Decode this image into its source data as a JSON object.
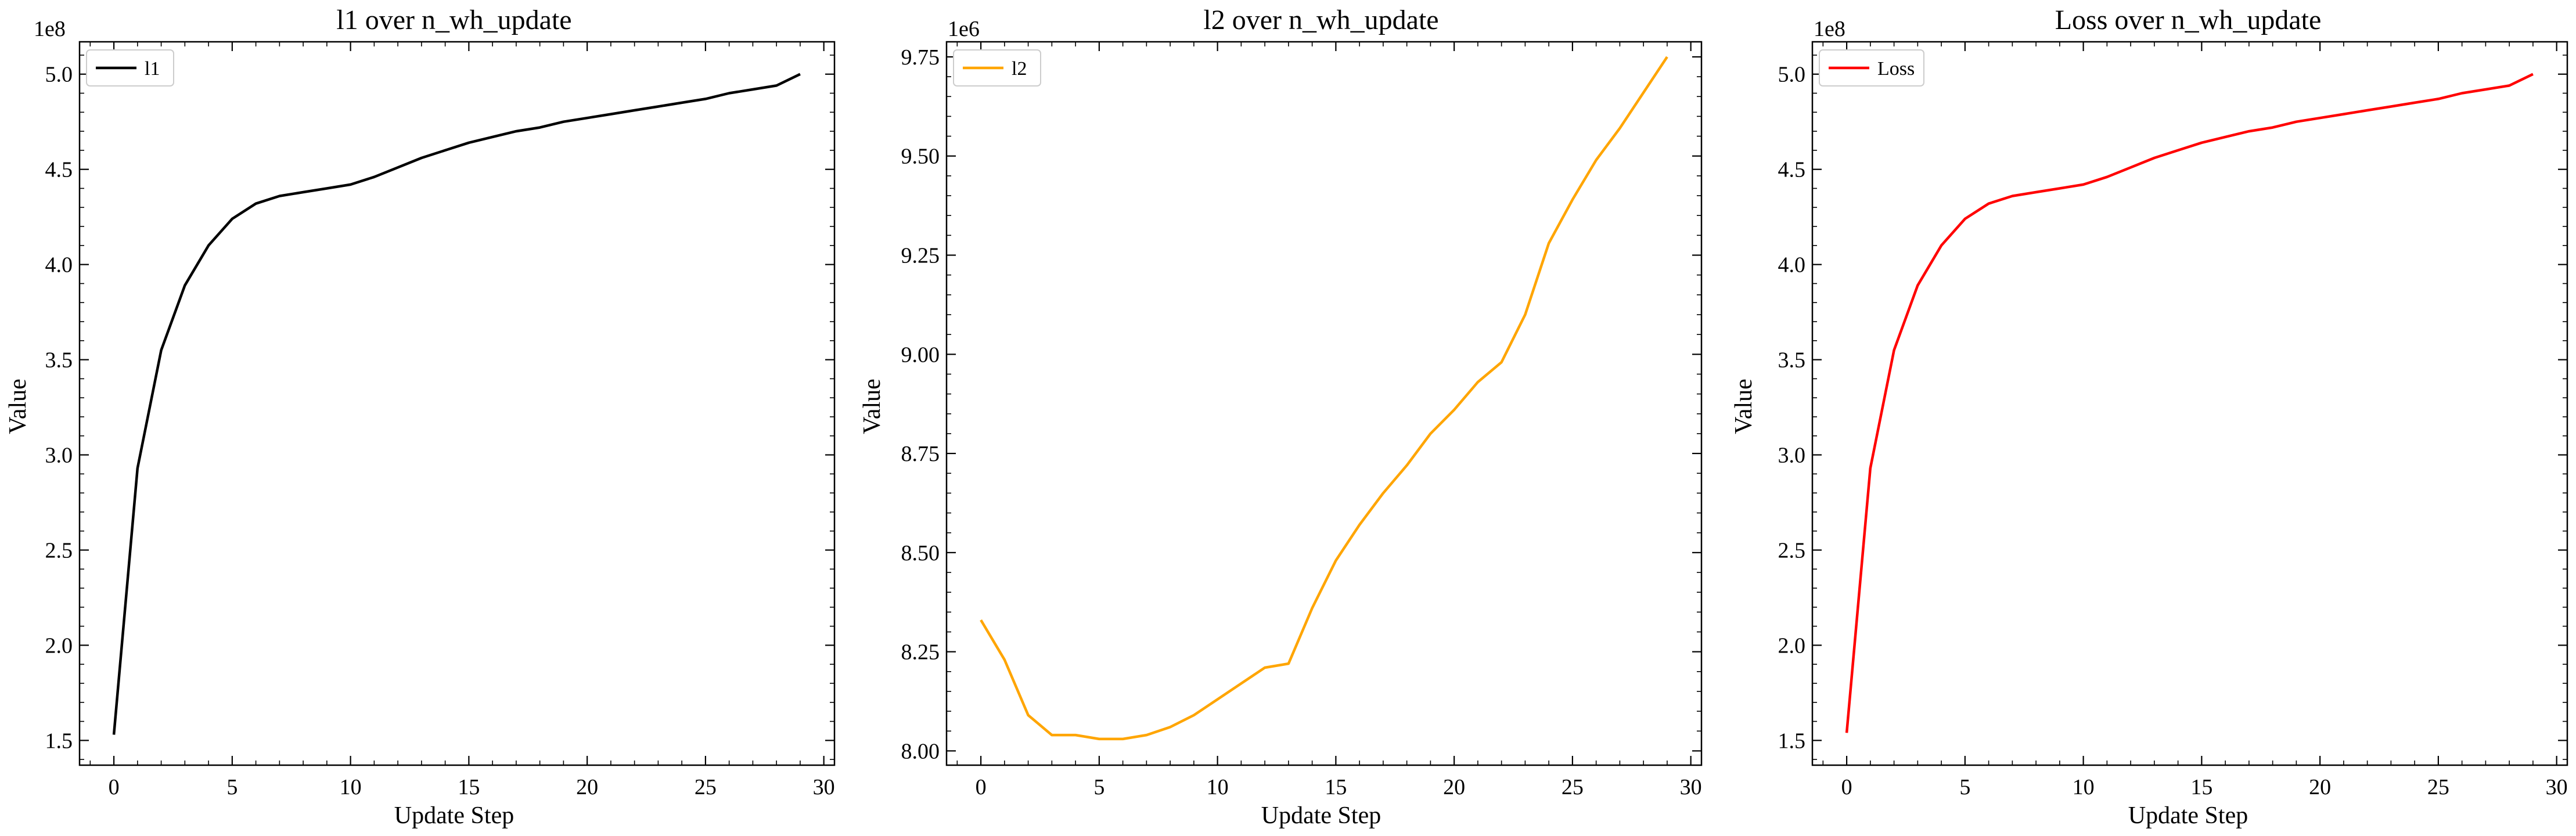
{
  "chart_data": [
    {
      "type": "line",
      "title": "l1 over n_wh_update",
      "xlabel": "Update Step",
      "ylabel": "Value",
      "offset_label": "1e8",
      "xlim": [
        -1.45,
        30.45
      ],
      "ylim": [
        1.37,
        5.17
      ],
      "xticks": [
        0,
        5,
        10,
        15,
        20,
        25,
        30
      ],
      "yticks": [
        1.5,
        2.0,
        2.5,
        3.0,
        3.5,
        4.0,
        4.5,
        5.0
      ],
      "xtick_labels": [
        "0",
        "5",
        "10",
        "15",
        "20",
        "25",
        "30"
      ],
      "ytick_labels": [
        "1.5",
        "2.0",
        "2.5",
        "3.0",
        "3.5",
        "4.0",
        "4.5",
        "5.0"
      ],
      "legend_position": "upper-left",
      "grid": false,
      "series": [
        {
          "name": "l1",
          "color": "#000000",
          "x": [
            0,
            1,
            2,
            3,
            4,
            5,
            6,
            7,
            8,
            9,
            10,
            11,
            12,
            13,
            14,
            15,
            16,
            17,
            18,
            19,
            20,
            21,
            22,
            23,
            24,
            25,
            26,
            27,
            28,
            29
          ],
          "values": [
            1.53,
            2.93,
            3.55,
            3.89,
            4.1,
            4.24,
            4.32,
            4.36,
            4.38,
            4.4,
            4.42,
            4.46,
            4.51,
            4.56,
            4.6,
            4.64,
            4.67,
            4.7,
            4.72,
            4.75,
            4.77,
            4.79,
            4.81,
            4.83,
            4.85,
            4.87,
            4.9,
            4.92,
            4.94,
            5.0
          ]
        }
      ]
    },
    {
      "type": "line",
      "title": "l2 over n_wh_update",
      "xlabel": "Update Step",
      "ylabel": "Value",
      "offset_label": "1e6",
      "xlim": [
        -1.45,
        30.45
      ],
      "ylim": [
        7.964,
        9.788
      ],
      "xticks": [
        0,
        5,
        10,
        15,
        20,
        25,
        30
      ],
      "yticks": [
        8.0,
        8.25,
        8.5,
        8.75,
        9.0,
        9.25,
        9.5,
        9.75
      ],
      "xtick_labels": [
        "0",
        "5",
        "10",
        "15",
        "20",
        "25",
        "30"
      ],
      "ytick_labels": [
        "8.00",
        "8.25",
        "8.50",
        "8.75",
        "9.00",
        "9.25",
        "9.50",
        "9.75"
      ],
      "legend_position": "upper-left",
      "grid": false,
      "series": [
        {
          "name": "l2",
          "color": "#FFA500",
          "x": [
            0,
            1,
            2,
            3,
            4,
            5,
            6,
            7,
            8,
            9,
            10,
            11,
            12,
            13,
            14,
            15,
            16,
            17,
            18,
            19,
            20,
            21,
            22,
            23,
            24,
            25,
            26,
            27,
            28,
            29
          ],
          "values": [
            8.33,
            8.23,
            8.09,
            8.04,
            8.04,
            8.03,
            8.03,
            8.04,
            8.06,
            8.09,
            8.13,
            8.17,
            8.21,
            8.22,
            8.36,
            8.48,
            8.57,
            8.65,
            8.72,
            8.8,
            8.86,
            8.93,
            8.98,
            9.1,
            9.28,
            9.39,
            9.49,
            9.57,
            9.66,
            9.75
          ]
        }
      ]
    },
    {
      "type": "line",
      "title": "Loss over n_wh_update",
      "xlabel": "Update Step",
      "ylabel": "Value",
      "offset_label": "1e8",
      "xlim": [
        -1.45,
        30.45
      ],
      "ylim": [
        1.37,
        5.17
      ],
      "xticks": [
        0,
        5,
        10,
        15,
        20,
        25,
        30
      ],
      "yticks": [
        1.5,
        2.0,
        2.5,
        3.0,
        3.5,
        4.0,
        4.5,
        5.0
      ],
      "xtick_labels": [
        "0",
        "5",
        "10",
        "15",
        "20",
        "25",
        "30"
      ],
      "ytick_labels": [
        "1.5",
        "2.0",
        "2.5",
        "3.0",
        "3.5",
        "4.0",
        "4.5",
        "5.0"
      ],
      "legend_position": "upper-left",
      "grid": false,
      "series": [
        {
          "name": "Loss",
          "color": "#FF0000",
          "x": [
            0,
            1,
            2,
            3,
            4,
            5,
            6,
            7,
            8,
            9,
            10,
            11,
            12,
            13,
            14,
            15,
            16,
            17,
            18,
            19,
            20,
            21,
            22,
            23,
            24,
            25,
            26,
            27,
            28,
            29
          ],
          "values": [
            1.54,
            2.93,
            3.55,
            3.89,
            4.1,
            4.24,
            4.32,
            4.36,
            4.38,
            4.4,
            4.42,
            4.46,
            4.51,
            4.56,
            4.6,
            4.64,
            4.67,
            4.7,
            4.72,
            4.75,
            4.77,
            4.79,
            4.81,
            4.83,
            4.85,
            4.87,
            4.9,
            4.92,
            4.94,
            5.0
          ]
        }
      ]
    }
  ]
}
